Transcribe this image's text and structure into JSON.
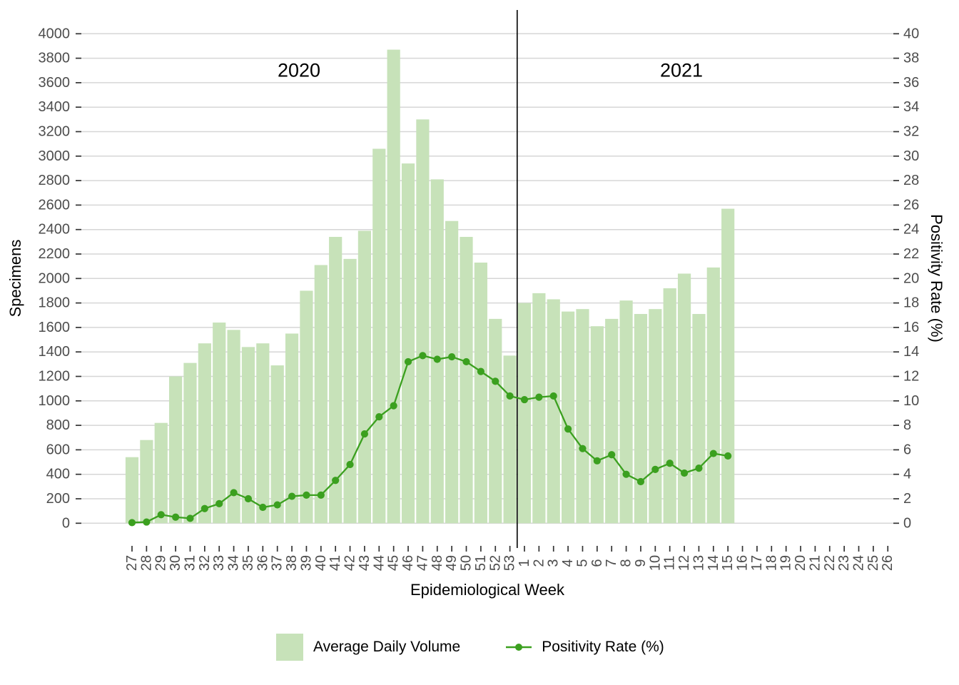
{
  "chart_data": {
    "type": "bar+line",
    "title": "",
    "x_axis": {
      "label": "Epidemiological Week",
      "categories": [
        "27",
        "28",
        "29",
        "30",
        "31",
        "32",
        "33",
        "34",
        "35",
        "36",
        "37",
        "38",
        "39",
        "40",
        "41",
        "42",
        "43",
        "44",
        "45",
        "46",
        "47",
        "48",
        "49",
        "50",
        "51",
        "52",
        "53",
        "1",
        "2",
        "3",
        "4",
        "5",
        "6",
        "7",
        "8",
        "9",
        "10",
        "11",
        "12",
        "13",
        "14",
        "15",
        "16",
        "17",
        "18",
        "19",
        "20",
        "21",
        "22",
        "23",
        "24",
        "25",
        "26"
      ]
    },
    "y_left": {
      "label": "Specimens",
      "min": 0,
      "max": 4000,
      "step": 200,
      "ticks": [
        0,
        200,
        400,
        600,
        800,
        1000,
        1200,
        1400,
        1600,
        1800,
        2000,
        2200,
        2400,
        2600,
        2800,
        3000,
        3200,
        3400,
        3600,
        3800,
        4000
      ]
    },
    "y_right": {
      "label": "Positivity Rate (%)",
      "min": 0,
      "max": 40,
      "step": 2,
      "ticks": [
        0,
        2,
        4,
        6,
        8,
        10,
        12,
        14,
        16,
        18,
        20,
        22,
        24,
        26,
        28,
        30,
        32,
        34,
        36,
        38,
        40
      ]
    },
    "annotations": [
      {
        "text": "2020",
        "x_week": "41",
        "y_value": 3700
      },
      {
        "text": "2021",
        "x_week": "11",
        "y_value": 3700
      }
    ],
    "divider_after_index": 26,
    "series": [
      {
        "name": "Average Daily Volume",
        "type": "bar",
        "color": "#c7e2b9",
        "values": [
          540,
          680,
          820,
          1200,
          1310,
          1470,
          1640,
          1580,
          1440,
          1470,
          1290,
          1550,
          1900,
          2110,
          2340,
          2160,
          2390,
          3060,
          3870,
          2940,
          3300,
          2810,
          2470,
          2340,
          2130,
          1670,
          1370,
          1800,
          1880,
          1830,
          1730,
          1750,
          1610,
          1670,
          1820,
          1710,
          1750,
          1920,
          2040,
          1710,
          2090,
          2570,
          null,
          null,
          null,
          null,
          null,
          null,
          null,
          null,
          null,
          null,
          null
        ]
      },
      {
        "name": "Positivity Rate (%)",
        "type": "line",
        "color": "#3ba01f",
        "values": [
          0.05,
          0.1,
          0.7,
          0.5,
          0.4,
          1.2,
          1.6,
          2.5,
          2.0,
          1.3,
          1.5,
          2.2,
          2.3,
          2.3,
          3.5,
          4.8,
          7.3,
          8.7,
          9.6,
          13.2,
          13.7,
          13.4,
          13.6,
          13.2,
          12.4,
          11.6,
          10.4,
          10.1,
          10.3,
          10.4,
          7.7,
          6.1,
          5.1,
          5.6,
          4.0,
          3.4,
          4.4,
          4.9,
          4.1,
          4.5,
          5.7,
          5.5,
          null,
          null,
          null,
          null,
          null,
          null,
          null,
          null,
          null,
          null,
          null
        ]
      }
    ],
    "legend": {
      "position": "bottom",
      "entries": [
        "Average Daily Volume",
        "Positivity Rate (%)"
      ]
    },
    "grid": {
      "horizontal": true,
      "vertical": false,
      "color": "#d6d6d6"
    },
    "axis_text_color": "#4d4d4d",
    "tick_color": "#333333",
    "divider_color": "#000000"
  }
}
